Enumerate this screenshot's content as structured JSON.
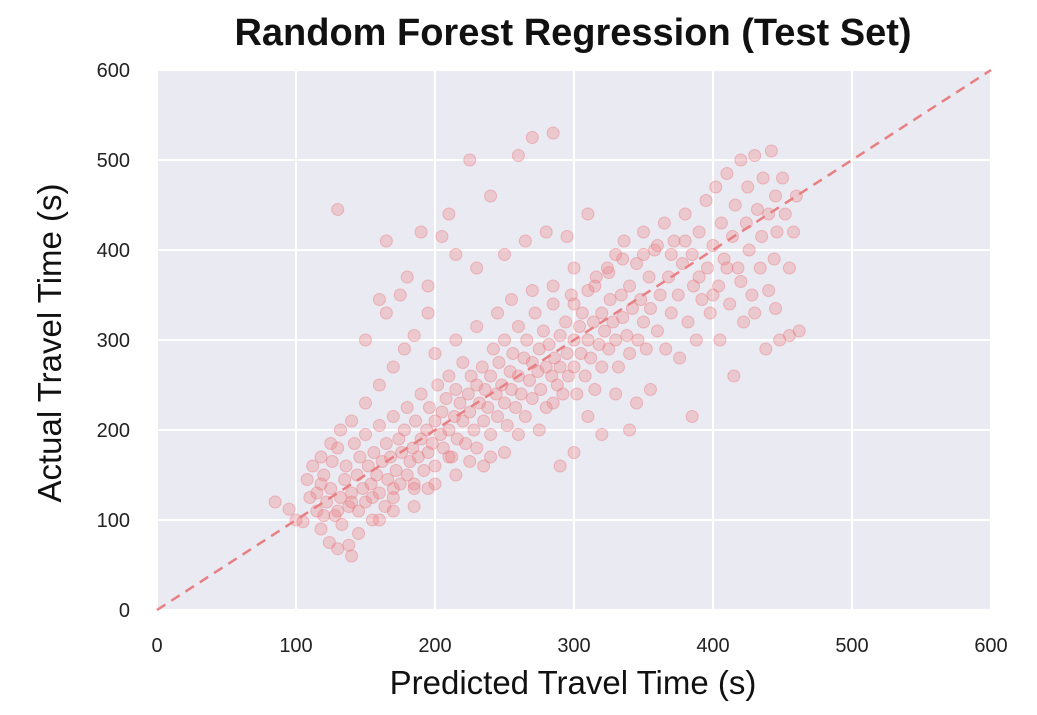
{
  "chart_data": {
    "type": "scatter",
    "title": "Random Forest Regression (Test Set)",
    "xlabel": "Predicted Travel Time (s)",
    "ylabel": "Actual Travel Time (s)",
    "xlim": [
      0,
      600
    ],
    "ylim": [
      0,
      600
    ],
    "xticks": [
      "0",
      "100",
      "200",
      "300",
      "400",
      "500",
      "600"
    ],
    "yticks": [
      "0",
      "100",
      "200",
      "300",
      "400",
      "500",
      "600"
    ],
    "grid": true,
    "legend": "none",
    "point_color": "#e87f82",
    "reference_line": {
      "style": "dashed",
      "color": "#e87f82",
      "x": [
        0,
        600
      ],
      "y": [
        0,
        600
      ]
    },
    "series": [
      {
        "points": [
          [
            85,
            120
          ],
          [
            95,
            112
          ],
          [
            100,
            100
          ],
          [
            105,
            98
          ],
          [
            108,
            145
          ],
          [
            110,
            125
          ],
          [
            112,
            160
          ],
          [
            115,
            110
          ],
          [
            118,
            90
          ],
          [
            118,
            140
          ],
          [
            120,
            150
          ],
          [
            122,
            120
          ],
          [
            124,
            75
          ],
          [
            125,
            135
          ],
          [
            126,
            165
          ],
          [
            128,
            105
          ],
          [
            130,
            180
          ],
          [
            132,
            125
          ],
          [
            133,
            95
          ],
          [
            135,
            145
          ],
          [
            136,
            160
          ],
          [
            138,
            115
          ],
          [
            140,
            130
          ],
          [
            140,
            60
          ],
          [
            142,
            185
          ],
          [
            144,
            150
          ],
          [
            145,
            110
          ],
          [
            146,
            170
          ],
          [
            148,
            135
          ],
          [
            150,
            195
          ],
          [
            150,
            120
          ],
          [
            152,
            160
          ],
          [
            154,
            140
          ],
          [
            155,
            100
          ],
          [
            156,
            175
          ],
          [
            158,
            150
          ],
          [
            160,
            130
          ],
          [
            160,
            205
          ],
          [
            162,
            165
          ],
          [
            164,
            115
          ],
          [
            165,
            185
          ],
          [
            166,
            145
          ],
          [
            168,
            170
          ],
          [
            170,
            125
          ],
          [
            170,
            215
          ],
          [
            172,
            155
          ],
          [
            174,
            190
          ],
          [
            175,
            140
          ],
          [
            176,
            175
          ],
          [
            178,
            200
          ],
          [
            180,
            150
          ],
          [
            180,
            225
          ],
          [
            182,
            165
          ],
          [
            184,
            180
          ],
          [
            185,
            135
          ],
          [
            186,
            210
          ],
          [
            188,
            170
          ],
          [
            190,
            190
          ],
          [
            190,
            240
          ],
          [
            192,
            155
          ],
          [
            194,
            200
          ],
          [
            195,
            175
          ],
          [
            196,
            225
          ],
          [
            198,
            185
          ],
          [
            200,
            210
          ],
          [
            200,
            160
          ],
          [
            202,
            250
          ],
          [
            204,
            195
          ],
          [
            205,
            220
          ],
          [
            206,
            180
          ],
          [
            208,
            235
          ],
          [
            210,
            200
          ],
          [
            210,
            260
          ],
          [
            212,
            170
          ],
          [
            214,
            215
          ],
          [
            215,
            245
          ],
          [
            216,
            190
          ],
          [
            218,
            230
          ],
          [
            220,
            210
          ],
          [
            220,
            275
          ],
          [
            222,
            185
          ],
          [
            224,
            240
          ],
          [
            225,
            220
          ],
          [
            226,
            260
          ],
          [
            228,
            200
          ],
          [
            230,
            250
          ],
          [
            230,
            180
          ],
          [
            232,
            230
          ],
          [
            234,
            270
          ],
          [
            235,
            210
          ],
          [
            236,
            245
          ],
          [
            238,
            225
          ],
          [
            240,
            260
          ],
          [
            240,
            195
          ],
          [
            242,
            290
          ],
          [
            244,
            240
          ],
          [
            245,
            215
          ],
          [
            246,
            275
          ],
          [
            248,
            250
          ],
          [
            250,
            230
          ],
          [
            250,
            300
          ],
          [
            252,
            205
          ],
          [
            254,
            265
          ],
          [
            255,
            245
          ],
          [
            256,
            285
          ],
          [
            258,
            225
          ],
          [
            260,
            260
          ],
          [
            260,
            315
          ],
          [
            262,
            240
          ],
          [
            264,
            280
          ],
          [
            265,
            215
          ],
          [
            266,
            300
          ],
          [
            268,
            255
          ],
          [
            270,
            275
          ],
          [
            270,
            235
          ],
          [
            272,
            330
          ],
          [
            274,
            265
          ],
          [
            275,
            290
          ],
          [
            276,
            245
          ],
          [
            278,
            310
          ],
          [
            280,
            270
          ],
          [
            280,
            225
          ],
          [
            282,
            295
          ],
          [
            284,
            260
          ],
          [
            285,
            340
          ],
          [
            286,
            280
          ],
          [
            288,
            250
          ],
          [
            290,
            305
          ],
          [
            290,
            270
          ],
          [
            292,
            240
          ],
          [
            294,
            320
          ],
          [
            295,
            285
          ],
          [
            296,
            260
          ],
          [
            298,
            350
          ],
          [
            300,
            300
          ],
          [
            300,
            270
          ],
          [
            302,
            240
          ],
          [
            304,
            315
          ],
          [
            305,
            285
          ],
          [
            306,
            330
          ],
          [
            308,
            260
          ],
          [
            310,
            300
          ],
          [
            310,
            355
          ],
          [
            312,
            280
          ],
          [
            314,
            320
          ],
          [
            315,
            245
          ],
          [
            316,
            370
          ],
          [
            318,
            295
          ],
          [
            320,
            330
          ],
          [
            320,
            270
          ],
          [
            322,
            310
          ],
          [
            324,
            380
          ],
          [
            325,
            290
          ],
          [
            326,
            345
          ],
          [
            328,
            320
          ],
          [
            330,
            300
          ],
          [
            330,
            395
          ],
          [
            332,
            270
          ],
          [
            334,
            350
          ],
          [
            335,
            325
          ],
          [
            336,
            410
          ],
          [
            338,
            305
          ],
          [
            340,
            360
          ],
          [
            340,
            285
          ],
          [
            342,
            335
          ],
          [
            345,
            385
          ],
          [
            346,
            300
          ],
          [
            348,
            345
          ],
          [
            350,
            320
          ],
          [
            350,
            420
          ],
          [
            352,
            290
          ],
          [
            354,
            370
          ],
          [
            355,
            335
          ],
          [
            358,
            400
          ],
          [
            360,
            310
          ],
          [
            362,
            350
          ],
          [
            365,
            430
          ],
          [
            366,
            290
          ],
          [
            368,
            370
          ],
          [
            370,
            330
          ],
          [
            372,
            410
          ],
          [
            375,
            350
          ],
          [
            376,
            280
          ],
          [
            378,
            385
          ],
          [
            380,
            440
          ],
          [
            382,
            320
          ],
          [
            385,
            395
          ],
          [
            386,
            360
          ],
          [
            388,
            300
          ],
          [
            390,
            420
          ],
          [
            392,
            345
          ],
          [
            395,
            455
          ],
          [
            396,
            380
          ],
          [
            398,
            330
          ],
          [
            400,
            405
          ],
          [
            402,
            470
          ],
          [
            404,
            360
          ],
          [
            405,
            300
          ],
          [
            406,
            430
          ],
          [
            408,
            390
          ],
          [
            410,
            485
          ],
          [
            412,
            340
          ],
          [
            414,
            415
          ],
          [
            415,
            260
          ],
          [
            416,
            450
          ],
          [
            418,
            380
          ],
          [
            420,
            500
          ],
          [
            422,
            320
          ],
          [
            424,
            430
          ],
          [
            425,
            470
          ],
          [
            426,
            400
          ],
          [
            428,
            350
          ],
          [
            430,
            505
          ],
          [
            432,
            445
          ],
          [
            434,
            380
          ],
          [
            435,
            415
          ],
          [
            436,
            480
          ],
          [
            438,
            290
          ],
          [
            440,
            440
          ],
          [
            442,
            510
          ],
          [
            444,
            390
          ],
          [
            445,
            460
          ],
          [
            446,
            420
          ],
          [
            448,
            300
          ],
          [
            450,
            480
          ],
          [
            452,
            440
          ],
          [
            455,
            305
          ],
          [
            458,
            420
          ],
          [
            460,
            460
          ],
          [
            462,
            310
          ],
          [
            165,
            410
          ],
          [
            130,
            445
          ],
          [
            210,
            440
          ],
          [
            240,
            460
          ],
          [
            260,
            505
          ],
          [
            270,
            525
          ],
          [
            285,
            530
          ],
          [
            225,
            500
          ],
          [
            190,
            420
          ],
          [
            205,
            415
          ],
          [
            150,
            300
          ],
          [
            165,
            330
          ],
          [
            175,
            350
          ],
          [
            180,
            370
          ],
          [
            160,
            345
          ],
          [
            195,
            360
          ],
          [
            215,
            395
          ],
          [
            230,
            380
          ],
          [
            250,
            395
          ],
          [
            265,
            410
          ],
          [
            280,
            420
          ],
          [
            295,
            415
          ],
          [
            300,
            380
          ],
          [
            310,
            440
          ],
          [
            285,
            230
          ],
          [
            330,
            240
          ],
          [
            345,
            230
          ],
          [
            355,
            245
          ],
          [
            385,
            215
          ],
          [
            300,
            175
          ],
          [
            320,
            195
          ],
          [
            340,
            200
          ],
          [
            310,
            215
          ],
          [
            275,
            200
          ],
          [
            260,
            195
          ],
          [
            290,
            160
          ],
          [
            250,
            175
          ],
          [
            235,
            160
          ],
          [
            215,
            150
          ],
          [
            200,
            140
          ],
          [
            185,
            115
          ],
          [
            170,
            110
          ],
          [
            160,
            100
          ],
          [
            145,
            85
          ],
          [
            138,
            72
          ],
          [
            130,
            68
          ],
          [
            210,
            170
          ],
          [
            225,
            165
          ],
          [
            240,
            170
          ],
          [
            195,
            135
          ],
          [
            185,
            140
          ],
          [
            170,
            135
          ],
          [
            155,
            125
          ],
          [
            140,
            120
          ],
          [
            130,
            110
          ],
          [
            120,
            105
          ],
          [
            115,
            130
          ],
          [
            118,
            170
          ],
          [
            125,
            185
          ],
          [
            132,
            200
          ],
          [
            140,
            210
          ],
          [
            150,
            230
          ],
          [
            160,
            250
          ],
          [
            170,
            270
          ],
          [
            178,
            290
          ],
          [
            185,
            305
          ],
          [
            195,
            330
          ],
          [
            200,
            285
          ],
          [
            215,
            300
          ],
          [
            230,
            315
          ],
          [
            245,
            330
          ],
          [
            255,
            345
          ],
          [
            270,
            355
          ],
          [
            285,
            360
          ],
          [
            300,
            340
          ],
          [
            315,
            360
          ],
          [
            325,
            375
          ],
          [
            335,
            390
          ],
          [
            350,
            395
          ],
          [
            360,
            405
          ],
          [
            370,
            395
          ],
          [
            380,
            410
          ],
          [
            390,
            370
          ],
          [
            400,
            350
          ],
          [
            410,
            380
          ],
          [
            420,
            365
          ],
          [
            430,
            330
          ],
          [
            440,
            355
          ],
          [
            455,
            380
          ],
          [
            445,
            335
          ]
        ]
      }
    ]
  }
}
